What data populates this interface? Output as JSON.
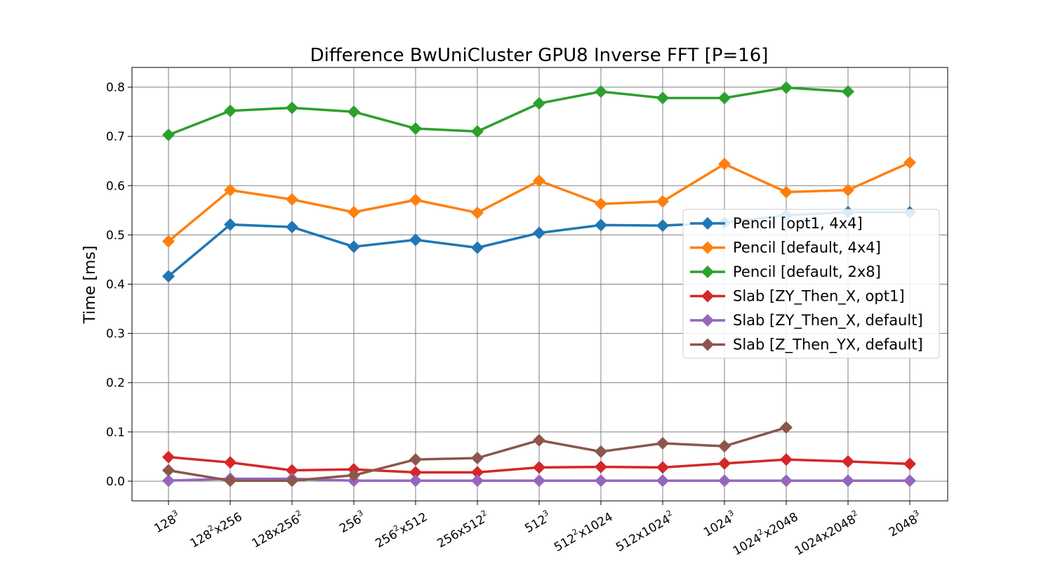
{
  "chart_data": {
    "type": "line",
    "title": "Difference BwUniCluster GPU8 Inverse FFT [P=16]",
    "xlabel": "",
    "ylabel": "Time [ms]",
    "ylim": [
      -0.04,
      0.84
    ],
    "yticks": [
      "0.0",
      "0.1",
      "0.2",
      "0.3",
      "0.4",
      "0.5",
      "0.6",
      "0.7",
      "0.8"
    ],
    "grid": true,
    "legend_position": "center-right",
    "categories": [
      {
        "base": "128",
        "exp": "3",
        "tail": ""
      },
      {
        "base": "128",
        "exp": "2",
        "tail": "x256"
      },
      {
        "base": "128x256",
        "exp": "2",
        "tail": ""
      },
      {
        "base": "256",
        "exp": "3",
        "tail": ""
      },
      {
        "base": "256",
        "exp": "2",
        "tail": "x512"
      },
      {
        "base": "256x512",
        "exp": "2",
        "tail": ""
      },
      {
        "base": "512",
        "exp": "3",
        "tail": ""
      },
      {
        "base": "512",
        "exp": "2",
        "tail": "x1024"
      },
      {
        "base": "512x1024",
        "exp": "2",
        "tail": ""
      },
      {
        "base": "1024",
        "exp": "3",
        "tail": ""
      },
      {
        "base": "1024",
        "exp": "2",
        "tail": "x2048"
      },
      {
        "base": "1024x2048",
        "exp": "2",
        "tail": ""
      },
      {
        "base": "2048",
        "exp": "3",
        "tail": ""
      }
    ],
    "series": [
      {
        "name": "Pencil [opt1, 4x4]",
        "color": "#1f77b4",
        "values": [
          0.416,
          0.521,
          0.516,
          0.476,
          0.49,
          0.474,
          0.504,
          0.52,
          0.519,
          0.525,
          0.54,
          0.546,
          0.546
        ]
      },
      {
        "name": "Pencil [default, 4x4]",
        "color": "#ff7f0e",
        "values": [
          0.487,
          0.591,
          0.572,
          0.546,
          0.571,
          0.545,
          0.61,
          0.563,
          0.568,
          0.644,
          0.587,
          0.591,
          0.647
        ]
      },
      {
        "name": "Pencil [default, 2x8]",
        "color": "#2ca02c",
        "values": [
          0.703,
          0.752,
          0.758,
          0.75,
          0.716,
          0.71,
          0.767,
          0.791,
          0.778,
          0.778,
          0.799,
          0.791,
          null
        ]
      },
      {
        "name": "Slab [ZY_Then_X, opt1]",
        "color": "#d62728",
        "values": [
          0.049,
          0.038,
          0.022,
          0.024,
          0.018,
          0.018,
          0.028,
          0.029,
          0.028,
          0.036,
          0.044,
          0.04,
          0.035
        ]
      },
      {
        "name": "Slab [ZY_Then_X, default]",
        "color": "#9467bd",
        "values": [
          0.001,
          0.005,
          0.005,
          0.001,
          0.001,
          0.001,
          0.001,
          0.001,
          0.001,
          0.001,
          0.001,
          0.001,
          0.001
        ]
      },
      {
        "name": "Slab [Z_Then_YX, default]",
        "color": "#8c564b",
        "values": [
          0.022,
          0.001,
          0.001,
          0.012,
          0.044,
          0.047,
          0.083,
          0.06,
          0.077,
          0.071,
          0.109,
          null,
          null
        ]
      }
    ]
  }
}
